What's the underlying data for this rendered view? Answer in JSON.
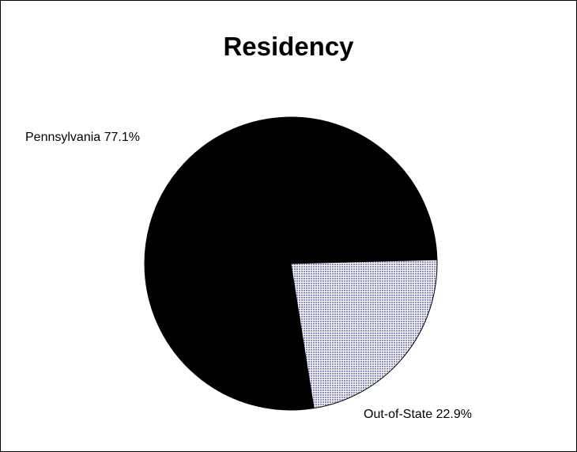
{
  "chart_data": {
    "type": "pie",
    "title": "Residency",
    "categories": [
      "Pennsylvania",
      "Out-of-State"
    ],
    "values": [
      77.1,
      22.9
    ],
    "labels": [
      "Pennsylvania 77.1%",
      "Out-of-State 22.9%"
    ],
    "colors": [
      "#000000",
      "#c8c8e6"
    ],
    "fill_patterns": [
      "solid",
      "dotted"
    ],
    "legend": "none",
    "border": true
  }
}
